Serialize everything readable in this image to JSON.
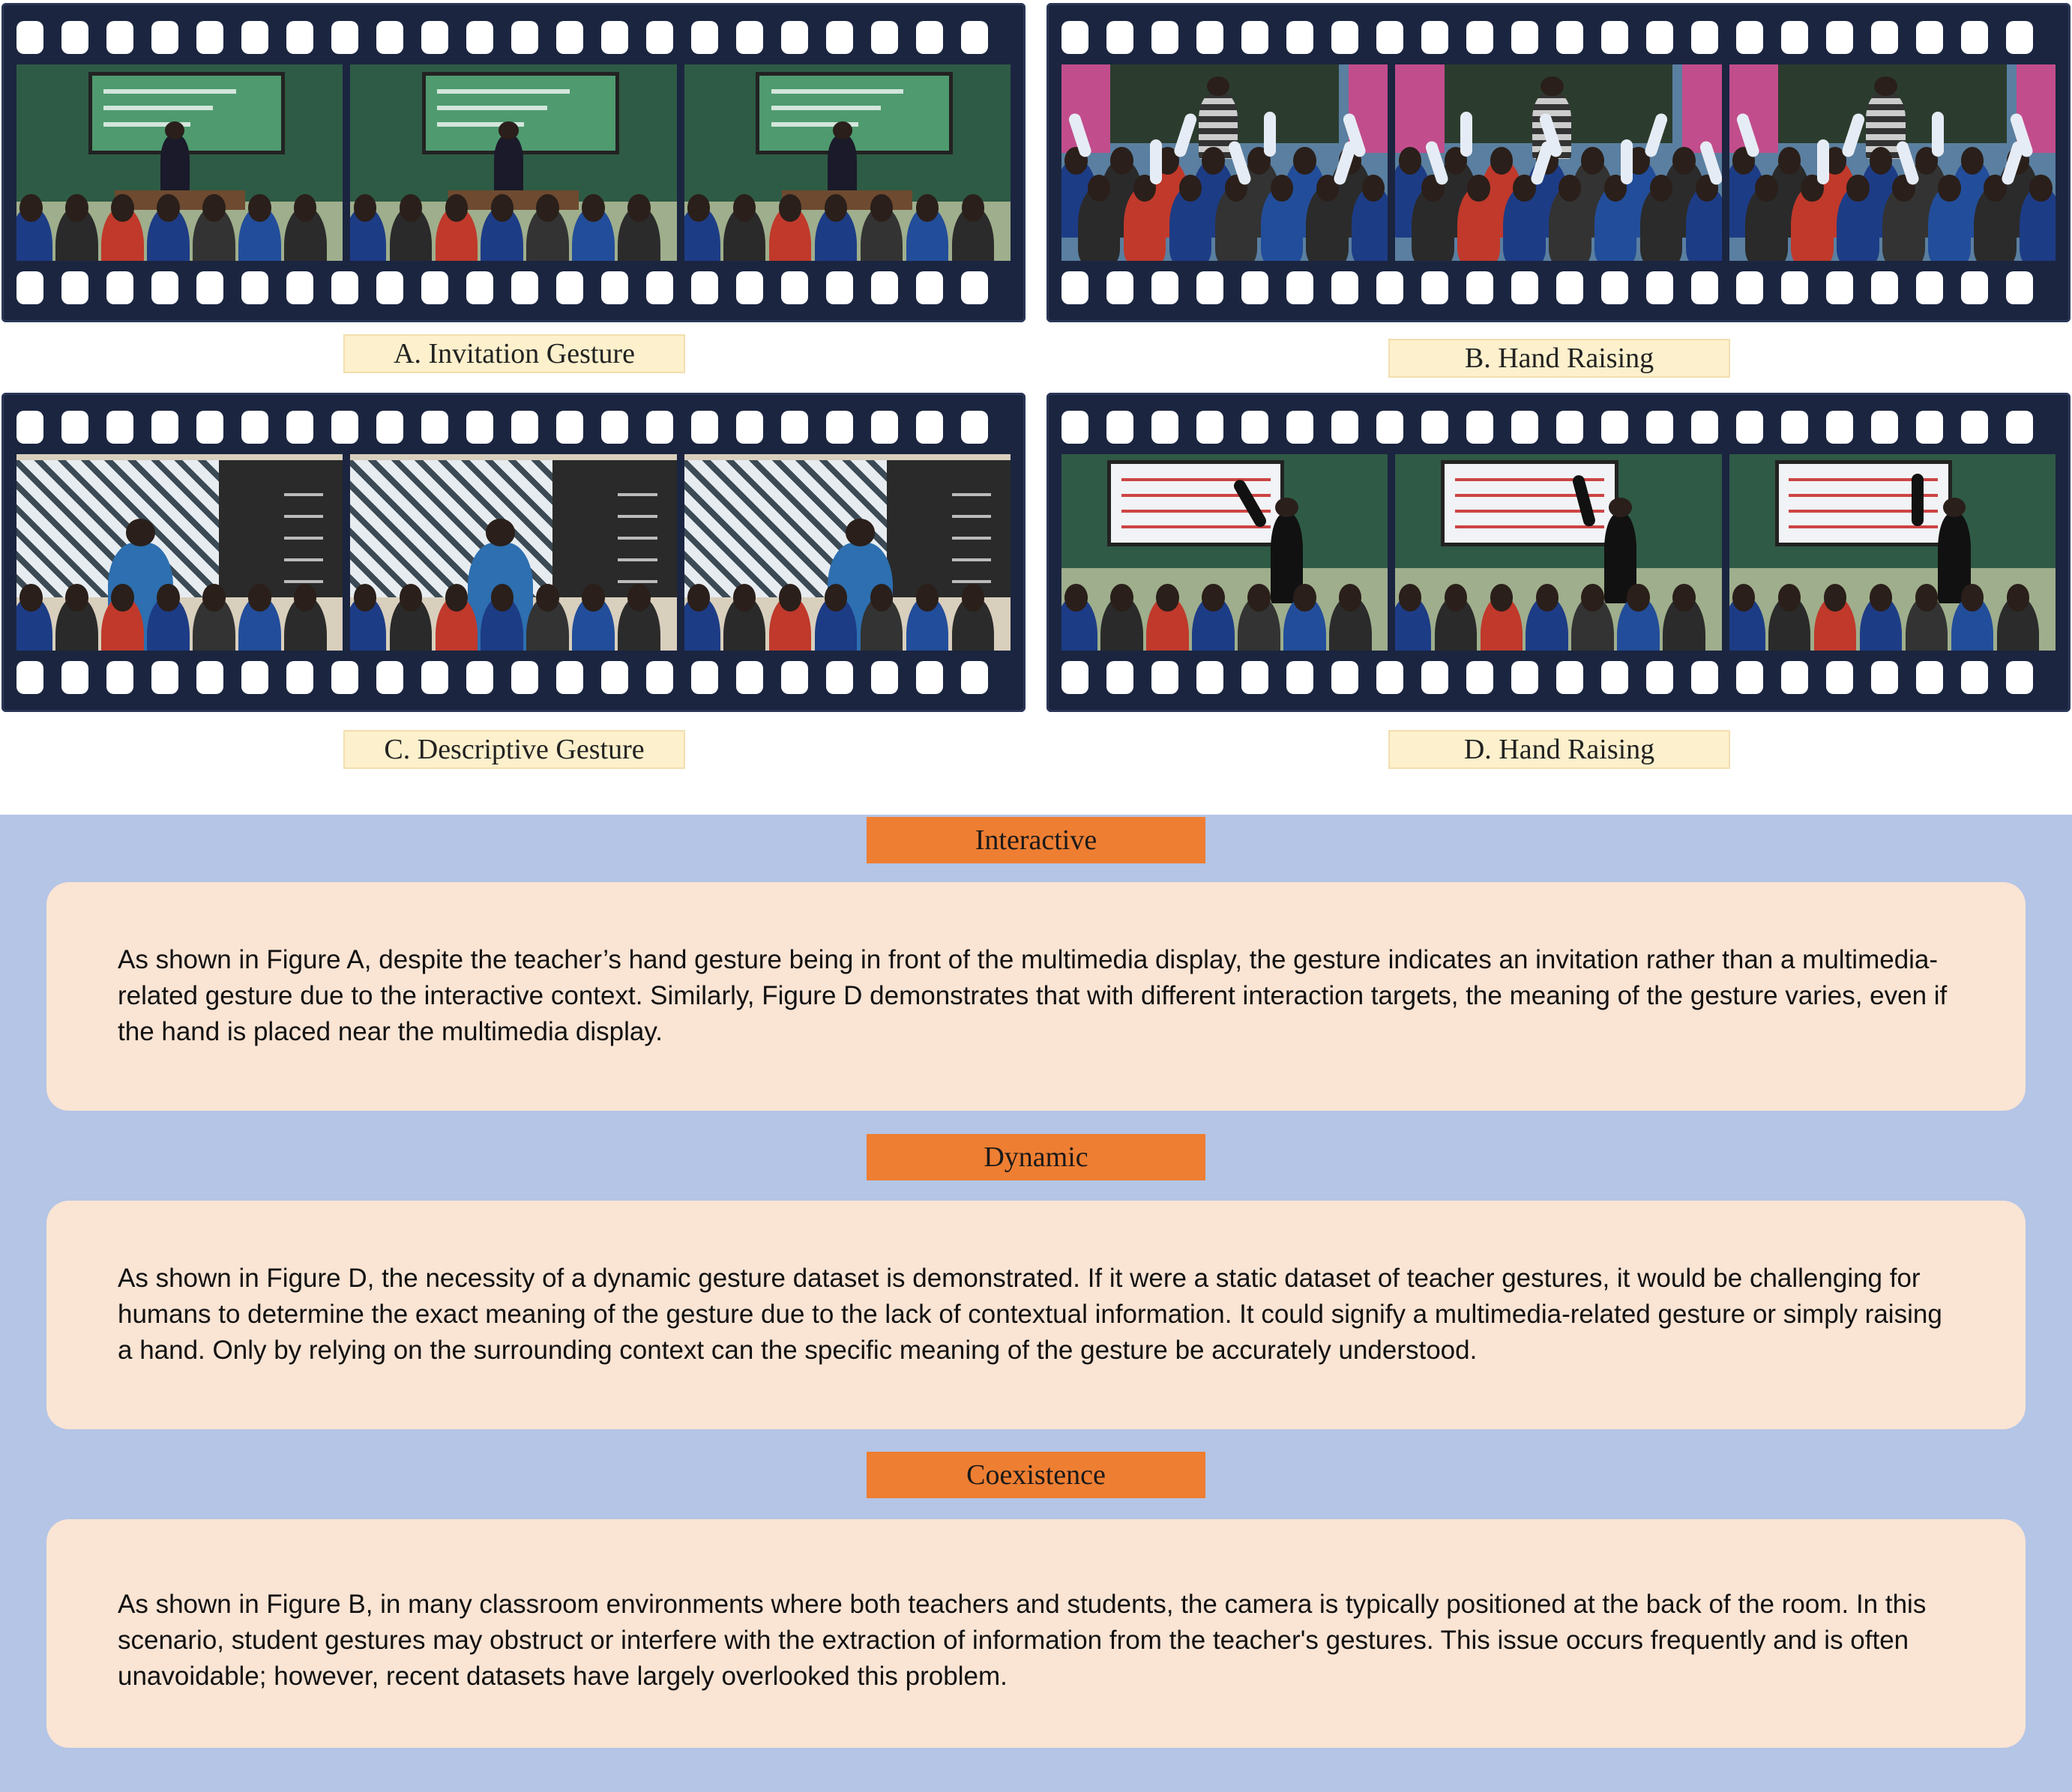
{
  "figures": [
    {
      "id": "A",
      "caption": "A. Invitation Gesture",
      "scene": "green-board"
    },
    {
      "id": "B",
      "caption": "B. Hand Raising",
      "scene": "hands-up"
    },
    {
      "id": "C",
      "caption": "C. Descriptive Gesture",
      "scene": "snow-screen"
    },
    {
      "id": "D",
      "caption": "D. Hand Raising",
      "scene": "table-screen"
    }
  ],
  "sections": [
    {
      "title": "Interactive",
      "text": "As shown in Figure A, despite the teacher’s hand gesture being in front of the multimedia display, the gesture indicates an invitation rather than a multimedia-related gesture due to the interactive context. Similarly, Figure D demonstrates that with different interaction targets, the meaning of the gesture varies, even if the hand is placed near the multimedia display."
    },
    {
      "title": "Dynamic",
      "text": "As shown in Figure D, the necessity of a dynamic gesture dataset is demonstrated. If it were a static dataset of teacher gestures, it would be challenging for humans to determine the exact meaning of the gesture due to the lack of contextual information. It could signify a multimedia-related gesture or simply raising a hand. Only by relying on the surrounding context can the specific meaning of the gesture be accurately understood."
    },
    {
      "title": "Coexistence",
      "text": "As shown in Figure B, in many classroom environments where both teachers and students, the camera is typically positioned at the back of the room. In this scenario, student gestures may obstruct or interfere with the extraction of information from the teacher's gestures. This issue occurs frequently and is often unavoidable; however, recent datasets have largely overlooked this problem."
    }
  ],
  "colors": {
    "film": "#1b2540",
    "caption_bg": "#fdf0cc",
    "panel_bg": "#b4c5e6",
    "tag_bg": "#ee7e32",
    "card_bg": "#fae4d4"
  }
}
